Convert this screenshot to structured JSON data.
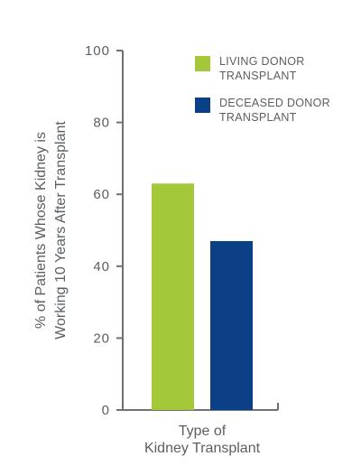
{
  "chart_data": {
    "type": "bar",
    "categories": [
      "Living Donor Transplant",
      "Deceased Donor Transplant"
    ],
    "values": [
      63,
      47
    ],
    "colors": [
      "#a3c93a",
      "#0b3f86"
    ],
    "ylim": [
      0,
      100
    ],
    "yticks": [
      0,
      20,
      40,
      60,
      80,
      100
    ],
    "ytick_labels": [
      "0",
      "20",
      "40",
      "60",
      "80",
      "100"
    ],
    "ylabel_lines": [
      "% of Patients Whose Kidney is",
      "Working 10 Years After Transplant"
    ],
    "xlabel_lines": [
      "Type of",
      "Kidney Transplant"
    ],
    "legend_position": "top-right",
    "grid": false,
    "legend": [
      {
        "lines": [
          "LIVING DONOR",
          "TRANSPLANT"
        ],
        "color": "#a3c93a"
      },
      {
        "lines": [
          "DECEASED DONOR",
          "TRANSPLANT"
        ],
        "color": "#0b3f86"
      }
    ],
    "axis_color": "#6d7277"
  }
}
